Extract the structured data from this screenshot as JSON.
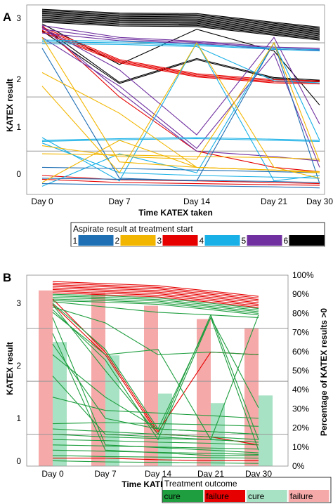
{
  "panels": [
    {
      "letter": "A",
      "chart_data": {
        "type": "line",
        "categories": [
          "Day 0",
          "Day 7",
          "Day 14",
          "Day 21",
          "Day 30"
        ],
        "xlabel": "Time KATEX taken",
        "ylabel": "KATEX result",
        "yticks": [
          "0",
          "1",
          "2",
          "3"
        ],
        "ylim": [
          -0.3,
          3.2
        ],
        "legend_title": "Aspirate result at treatment start",
        "legend_labels": [
          "1",
          "2",
          "3",
          "4",
          "5",
          "6"
        ],
        "legend_colors": [
          "#1f6fb4",
          "#f2b600",
          "#e60000",
          "#18b0e6",
          "#7030a0",
          "#000000"
        ],
        "series": [
          {
            "color": "#000000",
            "values": [
              3.12,
              3.05,
              3.04,
              2.88,
              2.79
            ]
          },
          {
            "color": "#000000",
            "values": [
              3.1,
              3.03,
              3.02,
              2.86,
              2.77
            ]
          },
          {
            "color": "#000000",
            "values": [
              3.08,
              3.01,
              3.0,
              2.84,
              2.75
            ]
          },
          {
            "color": "#000000",
            "values": [
              3.06,
              2.99,
              2.98,
              2.82,
              2.73
            ]
          },
          {
            "color": "#000000",
            "values": [
              3.04,
              2.97,
              2.96,
              2.8,
              2.71
            ]
          },
          {
            "color": "#000000",
            "values": [
              3.02,
              2.95,
              2.94,
              2.78,
              2.69
            ]
          },
          {
            "color": "#000000",
            "values": [
              3.0,
              2.93,
              2.92,
              2.76,
              2.67
            ]
          },
          {
            "color": "#000000",
            "values": [
              2.98,
              2.91,
              2.9,
              2.74,
              2.65
            ]
          },
          {
            "color": "#000000",
            "values": [
              2.96,
              2.89,
              2.88,
              2.72,
              2.63
            ]
          },
          {
            "color": "#000000",
            "values": [
              2.94,
              2.87,
              2.86,
              2.7,
              2.61
            ]
          },
          {
            "color": "#000000",
            "values": [
              2.92,
              2.85,
              2.84,
              2.68,
              2.59
            ]
          },
          {
            "color": "#000000",
            "values": [
              2.9,
              2.83,
              2.82,
              2.66,
              2.57
            ]
          },
          {
            "color": "#000000",
            "values": [
              2.88,
              2.81,
              2.8,
              2.64,
              2.55
            ]
          },
          {
            "color": "#000000",
            "values": [
              2.8,
              1.77,
              2.21,
              1.86,
              1.81
            ]
          },
          {
            "color": "#000000",
            "values": [
              2.72,
              1.75,
              2.19,
              1.84,
              1.79
            ]
          },
          {
            "color": "#000000",
            "values": [
              2.85,
              2.1,
              2.75,
              2.35,
              1.35
            ]
          },
          {
            "color": "#e60000",
            "values": [
              2.79,
              2.19,
              1.93,
              1.82,
              1.8
            ]
          },
          {
            "color": "#e60000",
            "values": [
              2.76,
              2.17,
              1.91,
              1.8,
              1.78
            ]
          },
          {
            "color": "#e60000",
            "values": [
              2.73,
              2.15,
              1.89,
              1.78,
              1.76
            ]
          },
          {
            "color": "#e60000",
            "values": [
              2.7,
              2.13,
              1.87,
              1.76,
              1.74
            ]
          },
          {
            "color": "#e60000",
            "values": [
              0.05,
              -0.03,
              -0.05,
              -0.08,
              -0.1
            ]
          },
          {
            "color": "#e60000",
            "values": [
              -0.02,
              -0.08,
              -0.1,
              -0.12,
              -0.13
            ]
          },
          {
            "color": "#e60000",
            "values": [
              2.82,
              1.5,
              0.5,
              0.2,
              0.12
            ]
          },
          {
            "color": "#7030a0",
            "values": [
              2.82,
              2.6,
              2.53,
              2.42,
              2.4
            ]
          },
          {
            "color": "#7030a0",
            "values": [
              2.75,
              2.57,
              2.51,
              2.4,
              2.38
            ]
          },
          {
            "color": "#7030a0",
            "values": [
              2.68,
              2.54,
              2.49,
              2.38,
              2.36
            ]
          },
          {
            "color": "#7030a0",
            "values": [
              2.8,
              1.6,
              0.5,
              0.4,
              0.32
            ]
          },
          {
            "color": "#7030a0",
            "values": [
              2.78,
              2.0,
              0.8,
              2.6,
              1.0
            ]
          },
          {
            "color": "#7030a0",
            "values": [
              2.6,
              1.7,
              0.55,
              2.3,
              0.2
            ]
          },
          {
            "color": "#18b0e6",
            "values": [
              2.55,
              2.53,
              2.47,
              2.4,
              2.37
            ]
          },
          {
            "color": "#18b0e6",
            "values": [
              2.52,
              2.5,
              2.45,
              2.38,
              2.35
            ]
          },
          {
            "color": "#18b0e6",
            "values": [
              2.48,
              2.47,
              2.43,
              1.8,
              1.76
            ]
          },
          {
            "color": "#18b0e6",
            "values": [
              0.75,
              -0.05,
              2.5,
              -0.05,
              0.05
            ]
          },
          {
            "color": "#18b0e6",
            "values": [
              0.7,
              0.73,
              0.75,
              0.72,
              0.7
            ]
          },
          {
            "color": "#18b0e6",
            "values": [
              0.68,
              0.71,
              0.73,
              0.7,
              0.68
            ]
          },
          {
            "color": "#18b0e6",
            "values": [
              0.65,
              0.1,
              0.05,
              0.02,
              0.0
            ]
          },
          {
            "color": "#18b0e6",
            "values": [
              -0.15,
              0.45,
              0.1,
              2.5,
              0.7
            ]
          },
          {
            "color": "#1f6fb4",
            "values": [
              2.4,
              0.0,
              -0.05,
              2.5,
              -0.1
            ]
          },
          {
            "color": "#1f6fb4",
            "values": [
              0.2,
              0.18,
              0.15,
              0.12,
              0.1
            ]
          },
          {
            "color": "#1f6fb4",
            "values": [
              0.0,
              -0.02,
              -0.04,
              -0.06,
              -0.08
            ]
          },
          {
            "color": "#1f6fb4",
            "values": [
              -0.1,
              -0.12,
              -0.14,
              -0.16,
              -0.18
            ]
          },
          {
            "color": "#f2b600",
            "values": [
              1.95,
              1.2,
              0.2,
              0.15,
              0.1
            ]
          },
          {
            "color": "#f2b600",
            "values": [
              1.7,
              0.1,
              2.5,
              0.2,
              0.0
            ]
          },
          {
            "color": "#f2b600",
            "values": [
              0.6,
              0.4,
              0.35,
              2.5,
              0.3
            ]
          },
          {
            "color": "#f2b600",
            "values": [
              0.45,
              0.43,
              0.4,
              0.38,
              0.35
            ]
          },
          {
            "color": "#f2b600",
            "values": [
              -0.08,
              0.7,
              0.2,
              0.15,
              0.12
            ]
          },
          {
            "color": "#f2b600",
            "values": [
              2.6,
              0.3,
              0.2,
              0.15,
              0.1
            ]
          }
        ]
      }
    },
    {
      "letter": "B",
      "chart_data": {
        "type": "line",
        "categories": [
          "Day 0",
          "Day 7",
          "Day 14",
          "Day 21",
          "Day 30"
        ],
        "xlabel": "Time KATEX taken",
        "ylabel": "KATEX result",
        "ylabel_right": "Percentage of KATEX results >0",
        "yticks": [
          "0",
          "1",
          "2",
          "3"
        ],
        "yticks_right": [
          "0%",
          "10%",
          "20%",
          "30%",
          "40%",
          "50%",
          "60%",
          "70%",
          "80%",
          "90%",
          "100%"
        ],
        "ylim": [
          -0.1,
          3.5
        ],
        "ylim_right": [
          0,
          100
        ],
        "bars": [
          {
            "category": "Day 0",
            "cure_pct": 65,
            "failure_pct": 92
          },
          {
            "category": "Day 7",
            "cure_pct": 58,
            "failure_pct": 91
          },
          {
            "category": "Day 14",
            "cure_pct": 38,
            "failure_pct": 84
          },
          {
            "category": "Day 21",
            "cure_pct": 33,
            "failure_pct": 77
          },
          {
            "category": "Day 30",
            "cure_pct": 37,
            "failure_pct": 72
          }
        ],
        "legend_title": "Treatment outcome",
        "legend_labels": [
          "cure",
          "failure",
          "cure",
          "failure"
        ],
        "legend_colors": [
          "#1e9e3e",
          "#e60000",
          "#a8e2c4",
          "#f5a9a9"
        ],
        "series": [
          {
            "color": "#e60000",
            "values": [
              3.38,
              3.34,
              3.3,
              3.2,
              3.1
            ]
          },
          {
            "color": "#e60000",
            "values": [
              3.35,
              3.31,
              3.27,
              3.17,
              3.07
            ]
          },
          {
            "color": "#e60000",
            "values": [
              3.32,
              3.28,
              3.24,
              3.14,
              3.04
            ]
          },
          {
            "color": "#e60000",
            "values": [
              3.29,
              3.25,
              3.21,
              3.11,
              3.01
            ]
          },
          {
            "color": "#e60000",
            "values": [
              3.26,
              3.22,
              3.18,
              3.08,
              2.98
            ]
          },
          {
            "color": "#e60000",
            "values": [
              3.23,
              3.19,
              3.15,
              3.05,
              2.95
            ]
          },
          {
            "color": "#e60000",
            "values": [
              3.2,
              3.16,
              3.12,
              3.02,
              2.92
            ]
          },
          {
            "color": "#e60000",
            "values": [
              3.17,
              3.13,
              3.09,
              2.99,
              2.89
            ]
          },
          {
            "color": "#e60000",
            "values": [
              3.05,
              2.05,
              0.55,
              2.05,
              2.0
            ]
          },
          {
            "color": "#e60000",
            "values": [
              2.95,
              2.0,
              0.5,
              0.45,
              0.3
            ]
          },
          {
            "color": "#e60000",
            "values": [
              0.05,
              0.05,
              0.02,
              0.0,
              0.0
            ]
          },
          {
            "color": "#1e9e3e",
            "values": [
              3.14,
              3.11,
              3.07,
              2.97,
              2.87
            ]
          },
          {
            "color": "#1e9e3e",
            "values": [
              3.11,
              3.08,
              3.04,
              2.94,
              2.84
            ]
          },
          {
            "color": "#1e9e3e",
            "values": [
              3.08,
              3.05,
              3.01,
              2.91,
              2.81
            ]
          },
          {
            "color": "#1e9e3e",
            "values": [
              3.05,
              3.02,
              2.98,
              2.88,
              2.78
            ]
          },
          {
            "color": "#1e9e3e",
            "values": [
              3.02,
              2.99,
              2.95,
              2.85,
              2.75
            ]
          },
          {
            "color": "#1e9e3e",
            "values": [
              3.0,
              2.9,
              2.8,
              2.75,
              2.7
            ]
          },
          {
            "color": "#1e9e3e",
            "values": [
              2.97,
              2.1,
              0.6,
              0.55,
              0.5
            ]
          },
          {
            "color": "#1e9e3e",
            "values": [
              2.94,
              1.7,
              0.5,
              2.75,
              0.4
            ]
          },
          {
            "color": "#1e9e3e",
            "values": [
              2.9,
              2.6,
              2.0,
              2.05,
              2.0
            ]
          },
          {
            "color": "#1e9e3e",
            "values": [
              2.85,
              1.9,
              0.4,
              2.7,
              0.2
            ]
          },
          {
            "color": "#1e9e3e",
            "values": [
              2.8,
              2.0,
              2.1,
              0.4,
              2.75
            ]
          },
          {
            "color": "#1e9e3e",
            "values": [
              2.7,
              0.3,
              0.25,
              0.2,
              0.15
            ]
          },
          {
            "color": "#1e9e3e",
            "values": [
              2.4,
              0.2,
              0.15,
              0.1,
              0.1
            ]
          },
          {
            "color": "#1e9e3e",
            "values": [
              2.0,
              1.2,
              0.6,
              0.55,
              0.5
            ]
          },
          {
            "color": "#1e9e3e",
            "values": [
              1.2,
              0.95,
              0.9,
              0.85,
              0.8
            ]
          },
          {
            "color": "#1e9e3e",
            "values": [
              0.6,
              0.55,
              0.5,
              0.45,
              0.4
            ]
          },
          {
            "color": "#1e9e3e",
            "values": [
              0.5,
              0.45,
              0.42,
              0.4,
              0.35
            ]
          },
          {
            "color": "#1e9e3e",
            "values": [
              0.4,
              0.38,
              0.35,
              0.33,
              0.3
            ]
          },
          {
            "color": "#1e9e3e",
            "values": [
              0.3,
              0.28,
              0.26,
              0.24,
              0.22
            ]
          },
          {
            "color": "#1e9e3e",
            "values": [
              0.2,
              0.18,
              0.16,
              0.14,
              0.12
            ]
          },
          {
            "color": "#1e9e3e",
            "values": [
              0.1,
              0.08,
              0.07,
              0.06,
              0.05
            ]
          },
          {
            "color": "#1e9e3e",
            "values": [
              0.0,
              -0.02,
              -0.03,
              -0.04,
              -0.05
            ]
          },
          {
            "color": "#1e9e3e",
            "values": [
              0.7,
              0.72,
              0.7,
              0.68,
              0.65
            ]
          },
          {
            "color": "#1e9e3e",
            "values": [
              1.6,
              0.5,
              0.45,
              0.4,
              0.35
            ]
          },
          {
            "color": "#1e9e3e",
            "values": [
              2.2,
              0.8,
              0.6,
              2.7,
              1.0
            ]
          }
        ]
      }
    }
  ]
}
